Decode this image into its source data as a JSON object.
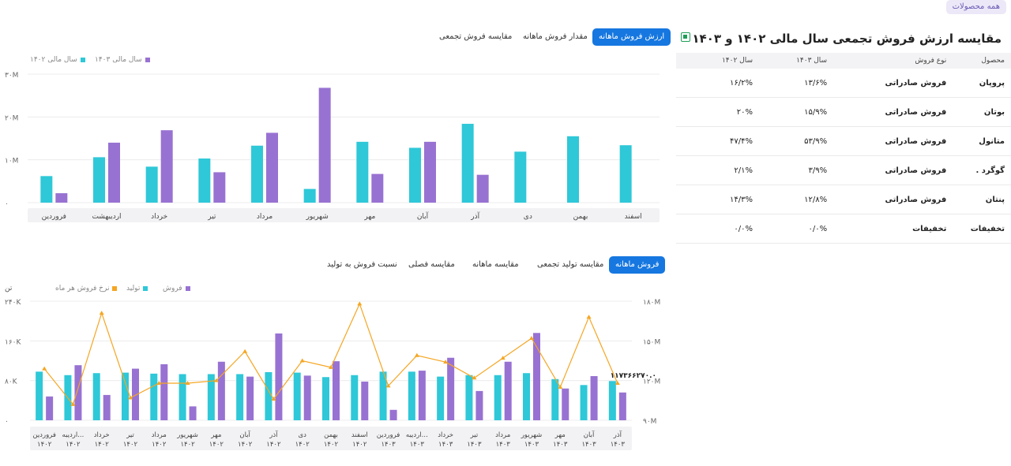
{
  "header": {
    "all_products_label": "همه محصولات"
  },
  "chart1": {
    "tabs": [
      "ارزش فروش ماهانه",
      "مقدار فروش ماهانه",
      "مقایسه فروش تجمعی"
    ],
    "legend": [
      "سال مالی ۱۴۰۳",
      "سال مالی ۱۴۰۲"
    ]
  },
  "table": {
    "title": "مقایسه ارزش فروش تجمعی سال مالی ۱۴۰۲ و ۱۴۰۳",
    "headers": [
      "محصول",
      "نوع فروش",
      "سال ۱۴۰۳",
      "سال ۱۴۰۲"
    ],
    "rows": [
      [
        "پروپان",
        "فروش صادراتی",
        "۱۳/۶%",
        "۱۶/۲%"
      ],
      [
        "بوتان",
        "فروش صادراتی",
        "۱۵/۹%",
        "۲۰%"
      ],
      [
        "متانول",
        "فروش صادراتی",
        "۵۳/۹%",
        "۴۷/۴%"
      ],
      [
        "گوگرد .",
        "فروش صادراتی",
        "۳/۹%",
        "۲/۱%"
      ],
      [
        "پنتان",
        "فروش صادراتی",
        "۱۲/۸%",
        "۱۴/۳%"
      ],
      [
        "تخفیفات",
        "تخفیفات",
        "۰/۰%",
        "۰/۰%"
      ]
    ]
  },
  "chart2": {
    "tabs": [
      "فروش ماهانه",
      "مقایسه تولید تجمعی",
      "مقایسه ماهانه",
      "مقایسه فصلی",
      "نسبت فروش به تولید"
    ],
    "legend": [
      "فروش",
      "تولید",
      "نرخ فروش هر ماه"
    ],
    "left_unit": "تن",
    "annotation": "۱۱۷۳۶۶۲۷۰.۰"
  },
  "colors": {
    "teal": "#2ec8d8",
    "purple": "#9872d2",
    "orange": "#f5a623",
    "accent": "#1677e0"
  },
  "chart_data": [
    {
      "type": "bar",
      "categories": [
        "فروردین",
        "اردیبهشت",
        "خرداد",
        "تیر",
        "مرداد",
        "شهریور",
        "مهر",
        "آبان",
        "آذر",
        "دی",
        "بهمن",
        "اسفند"
      ],
      "series": [
        {
          "name": "سال مالی ۱۴۰۲",
          "color": "#2ec8d8",
          "values": [
            6.2,
            10.6,
            8.4,
            10.3,
            13.3,
            3.2,
            14.2,
            12.8,
            18.4,
            11.9,
            15.5,
            13.4
          ]
        },
        {
          "name": "سال مالی ۱۴۰۳",
          "color": "#9872d2",
          "values": [
            2.2,
            14.0,
            16.9,
            7.1,
            16.3,
            26.8,
            6.7,
            14.2,
            6.5,
            null,
            null,
            null
          ]
        }
      ],
      "yticks": [
        "۰",
        "۱۰M",
        "۲۰M",
        "۳۰M"
      ],
      "ylim": [
        0,
        30
      ]
    },
    {
      "type": "bar+line",
      "categories": [
        [
          "فروردین",
          "۱۴۰۲"
        ],
        [
          "اردیبه...",
          "۱۴۰۲"
        ],
        [
          "خرداد",
          "۱۴۰۲"
        ],
        [
          "تیر",
          "۱۴۰۲"
        ],
        [
          "مرداد",
          "۱۴۰۲"
        ],
        [
          "شهریور",
          "۱۴۰۲"
        ],
        [
          "مهر",
          "۱۴۰۲"
        ],
        [
          "آبان",
          "۱۴۰۲"
        ],
        [
          "آذر",
          "۱۴۰۲"
        ],
        [
          "دی",
          "۱۴۰۲"
        ],
        [
          "بهمن",
          "۱۴۰۲"
        ],
        [
          "اسفند",
          "۱۴۰۲"
        ],
        [
          "فروردین",
          "۱۴۰۳"
        ],
        [
          "اردیبه...",
          "۱۴۰۳"
        ],
        [
          "خرداد",
          "۱۴۰۳"
        ],
        [
          "تیر",
          "۱۴۰۳"
        ],
        [
          "مرداد",
          "۱۴۰۳"
        ],
        [
          "شهریور",
          "۱۴۰۳"
        ],
        [
          "مهر",
          "۱۴۰۳"
        ],
        [
          "آبان",
          "۱۴۰۳"
        ],
        [
          "آذر",
          "۱۴۰۳"
        ]
      ],
      "series": [
        {
          "name": "تولید",
          "color": "#2ec8d8",
          "axis": "left",
          "values": [
            98000,
            91000,
            95000,
            96000,
            94000,
            93000,
            93000,
            93000,
            97000,
            96000,
            87000,
            91000,
            98000,
            98000,
            88000,
            91000,
            91000,
            95000,
            83000,
            71000,
            79000
          ]
        },
        {
          "name": "فروش",
          "color": "#9872d2",
          "axis": "left",
          "values": [
            48000,
            111000,
            51000,
            104000,
            113000,
            28000,
            118000,
            88000,
            175000,
            90000,
            119000,
            78000,
            21000,
            100000,
            126000,
            59000,
            118000,
            176000,
            64000,
            89000,
            56000
          ]
        },
        {
          "name": "نرخ فروش هر ماه",
          "color": "#f5a623",
          "axis": "right",
          "values": [
            129,
            102,
            171,
            107,
            118,
            118,
            120,
            142,
            106,
            135,
            130,
            178,
            116,
            139,
            134,
            122,
            137,
            152,
            115,
            168,
            118
          ]
        }
      ],
      "yticks_left": [
        "۰",
        "۸۰K",
        "۱۶۰K",
        "۲۴۰K"
      ],
      "ylim_left": [
        0,
        240000
      ],
      "yticks_right": [
        "۹۰M",
        "۱۲۰M",
        "۱۵۰M",
        "۱۸۰M"
      ],
      "ylim_right": [
        90,
        180
      ]
    }
  ]
}
